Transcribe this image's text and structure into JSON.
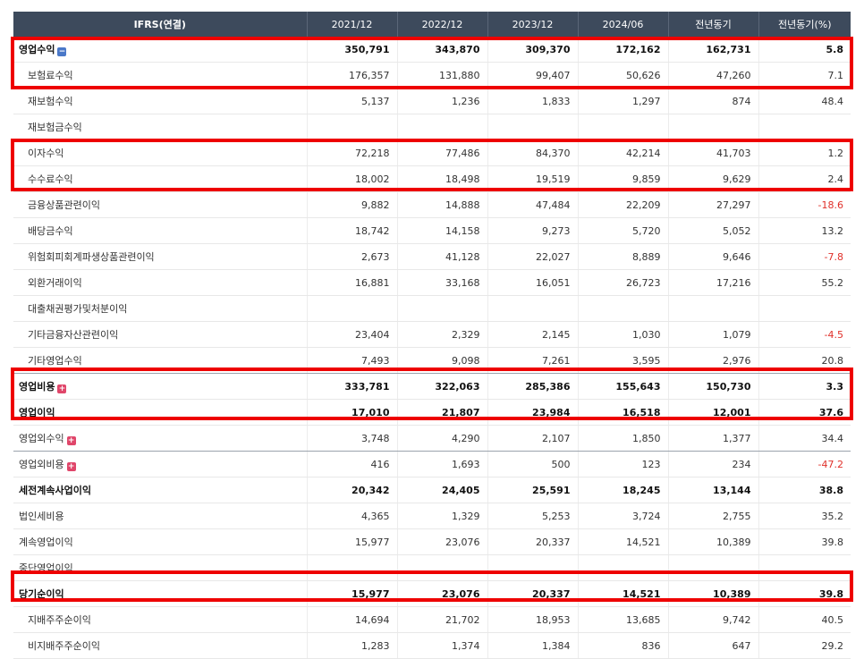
{
  "table": {
    "headers": [
      "IFRS(연결)",
      "2021/12",
      "2022/12",
      "2023/12",
      "2024/06",
      "전년동기",
      "전년동기(%)"
    ],
    "rows": [
      {
        "label": "영업수익",
        "values": [
          "350,791",
          "343,870",
          "309,370",
          "172,162",
          "162,731",
          "5.8"
        ],
        "style": "bold",
        "icon": "collapse-icon"
      },
      {
        "label": "보험료수익",
        "values": [
          "176,357",
          "131,880",
          "99,407",
          "50,626",
          "47,260",
          "7.1"
        ],
        "style": "sub"
      },
      {
        "label": "재보험수익",
        "values": [
          "5,137",
          "1,236",
          "1,833",
          "1,297",
          "874",
          "48.4"
        ],
        "style": "sub"
      },
      {
        "label": "재보험금수익",
        "values": [
          "",
          "",
          "",
          "",
          "",
          ""
        ],
        "style": "sub"
      },
      {
        "label": "이자수익",
        "values": [
          "72,218",
          "77,486",
          "84,370",
          "42,214",
          "41,703",
          "1.2"
        ],
        "style": "sub"
      },
      {
        "label": "수수료수익",
        "values": [
          "18,002",
          "18,498",
          "19,519",
          "9,859",
          "9,629",
          "2.4"
        ],
        "style": "sub"
      },
      {
        "label": "금융상품관련이익",
        "values": [
          "9,882",
          "14,888",
          "47,484",
          "22,209",
          "27,297",
          "-18.6"
        ],
        "style": "sub"
      },
      {
        "label": "배당금수익",
        "values": [
          "18,742",
          "14,158",
          "9,273",
          "5,720",
          "5,052",
          "13.2"
        ],
        "style": "sub"
      },
      {
        "label": "위험회피회계파생상품관련이익",
        "values": [
          "2,673",
          "41,128",
          "22,027",
          "8,889",
          "9,646",
          "-7.8"
        ],
        "style": "sub"
      },
      {
        "label": "외환거래이익",
        "values": [
          "16,881",
          "33,168",
          "16,051",
          "26,723",
          "17,216",
          "55.2"
        ],
        "style": "sub"
      },
      {
        "label": "대출채권평가및처분이익",
        "values": [
          "",
          "",
          "",
          "",
          "",
          ""
        ],
        "style": "sub"
      },
      {
        "label": "기타금융자산관련이익",
        "values": [
          "23,404",
          "2,329",
          "2,145",
          "1,030",
          "1,079",
          "-4.5"
        ],
        "style": "sub"
      },
      {
        "label": "기타영업수익",
        "values": [
          "7,493",
          "9,098",
          "7,261",
          "3,595",
          "2,976",
          "20.8"
        ],
        "style": "sub-sep"
      },
      {
        "label": "영업비용",
        "values": [
          "333,781",
          "322,063",
          "285,386",
          "155,643",
          "150,730",
          "3.3"
        ],
        "style": "bold",
        "icon": "expand-icon"
      },
      {
        "label": "영업이익",
        "values": [
          "17,010",
          "21,807",
          "23,984",
          "16,518",
          "12,001",
          "37.6"
        ],
        "style": "bold"
      },
      {
        "label": "영업외수익",
        "values": [
          "3,748",
          "4,290",
          "2,107",
          "1,850",
          "1,377",
          "34.4"
        ],
        "style": "main-sep",
        "icon": "expand-icon"
      },
      {
        "label": "영업외비용",
        "values": [
          "416",
          "1,693",
          "500",
          "123",
          "234",
          "-47.2"
        ],
        "style": "main",
        "icon": "expand-icon"
      },
      {
        "label": "세전계속사업이익",
        "values": [
          "20,342",
          "24,405",
          "25,591",
          "18,245",
          "13,144",
          "38.8"
        ],
        "style": "bold"
      },
      {
        "label": "법인세비용",
        "values": [
          "4,365",
          "1,329",
          "5,253",
          "3,724",
          "2,755",
          "35.2"
        ],
        "style": "main"
      },
      {
        "label": "계속영업이익",
        "values": [
          "15,977",
          "23,076",
          "20,337",
          "14,521",
          "10,389",
          "39.8"
        ],
        "style": "main"
      },
      {
        "label": "중단영업이익",
        "values": [
          "",
          "",
          "",
          "",
          "",
          ""
        ],
        "style": "main"
      },
      {
        "label": "당기순이익",
        "values": [
          "15,977",
          "23,076",
          "20,337",
          "14,521",
          "10,389",
          "39.8"
        ],
        "style": "bold"
      },
      {
        "label": "지배주주순이익",
        "values": [
          "14,694",
          "21,702",
          "18,953",
          "13,685",
          "9,742",
          "40.5"
        ],
        "style": "sub"
      },
      {
        "label": "비지배주주순이익",
        "values": [
          "1,283",
          "1,374",
          "1,384",
          "836",
          "647",
          "29.2"
        ],
        "style": "sub"
      }
    ]
  },
  "colors": {
    "header_bg": "#3d4a5c",
    "highlight": "#ee0000",
    "negative": "#e0302a"
  }
}
